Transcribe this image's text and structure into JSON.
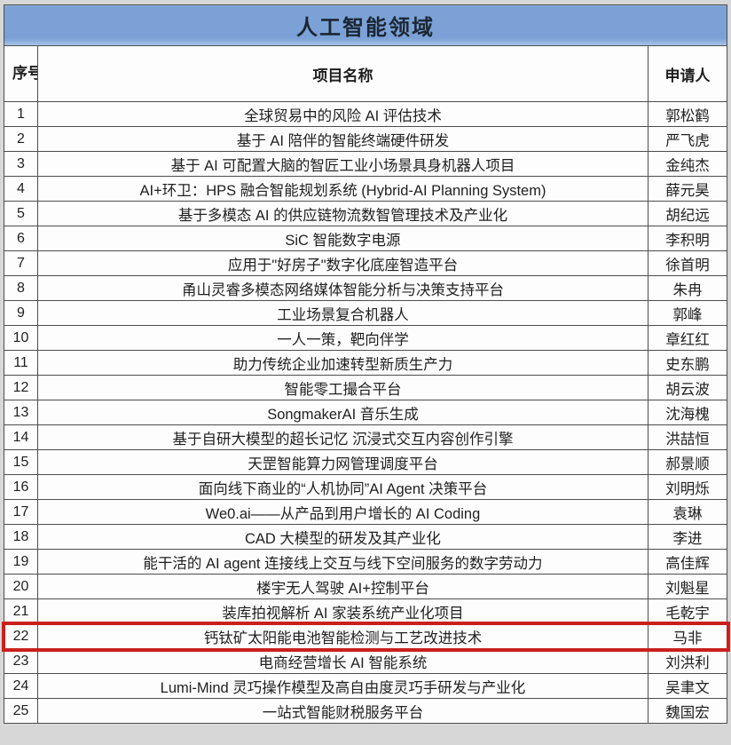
{
  "title": "人工智能领域",
  "table": {
    "headers": [
      "序号",
      "项目名称",
      "申请人"
    ],
    "highlighted_row_no": "22",
    "rows": [
      {
        "no": "1",
        "project": "全球贸易中的风险 AI 评估技术",
        "applicant": "郭松鹤"
      },
      {
        "no": "2",
        "project": "基于 AI 陪伴的智能终端硬件研发",
        "applicant": "严飞虎"
      },
      {
        "no": "3",
        "project": "基于 AI 可配置大脑的智匠工业小场景具身机器人项目",
        "applicant": "金纯杰"
      },
      {
        "no": "4",
        "project": "AI+环卫：HPS 融合智能规划系统 (Hybrid-AI Planning System)",
        "applicant": "薛元昊"
      },
      {
        "no": "5",
        "project": "基于多模态 AI 的供应链物流数智管理技术及产业化",
        "applicant": "胡纪远"
      },
      {
        "no": "6",
        "project": "SiC 智能数字电源",
        "applicant": "李积明"
      },
      {
        "no": "7",
        "project": "应用于\"好房子\"数字化底座智造平台",
        "applicant": "徐首明"
      },
      {
        "no": "8",
        "project": "甬山灵睿多模态网络媒体智能分析与决策支持平台",
        "applicant": "朱冉"
      },
      {
        "no": "9",
        "project": "工业场景复合机器人",
        "applicant": "郭峰"
      },
      {
        "no": "10",
        "project": "一人一策，靶向伴学",
        "applicant": "章红红"
      },
      {
        "no": "11",
        "project": "助力传统企业加速转型新质生产力",
        "applicant": "史东鹏"
      },
      {
        "no": "12",
        "project": "智能零工撮合平台",
        "applicant": "胡云波"
      },
      {
        "no": "13",
        "project": "SongmakerAI 音乐生成",
        "applicant": "沈海槐"
      },
      {
        "no": "14",
        "project": "基于自研大模型的超长记忆 沉浸式交互内容创作引擎",
        "applicant": "洪喆恒"
      },
      {
        "no": "15",
        "project": "天罡智能算力网管理调度平台",
        "applicant": "郝景顺"
      },
      {
        "no": "16",
        "project": "面向线下商业的“人机协同”AI Agent 决策平台",
        "applicant": "刘明烁"
      },
      {
        "no": "17",
        "project": "We0.ai——从产品到用户增长的 AI Coding",
        "applicant": "袁琳"
      },
      {
        "no": "18",
        "project": "CAD 大模型的研发及其产业化",
        "applicant": "李进"
      },
      {
        "no": "19",
        "project": "能干活的 AI agent 连接线上交互与线下空间服务的数字劳动力",
        "applicant": "高佳辉"
      },
      {
        "no": "20",
        "project": "楼宇无人驾驶 AI+控制平台",
        "applicant": "刘魁星"
      },
      {
        "no": "21",
        "project": "装库拍视解析 AI 家装系统产业化项目",
        "applicant": "毛乾宇"
      },
      {
        "no": "22",
        "project": "钙钛矿太阳能电池智能检测与工艺改进技术",
        "applicant": "马非"
      },
      {
        "no": "23",
        "project": "电商经营增长 AI 智能系统",
        "applicant": "刘洪利"
      },
      {
        "no": "24",
        "project": "Lumi-Mind 灵巧操作模型及高自由度灵巧手研发与产业化",
        "applicant": "吴聿文"
      },
      {
        "no": "25",
        "project": "一站式智能财税服务平台",
        "applicant": "魏国宏"
      }
    ]
  },
  "colors": {
    "title_bar_blue": "#7ba1d6",
    "title_bar_blue_light": "#a9c6e6",
    "highlight_red": "#c9201c",
    "border_gray": "#4d4d4d",
    "page_background": "#d7d7d7"
  }
}
